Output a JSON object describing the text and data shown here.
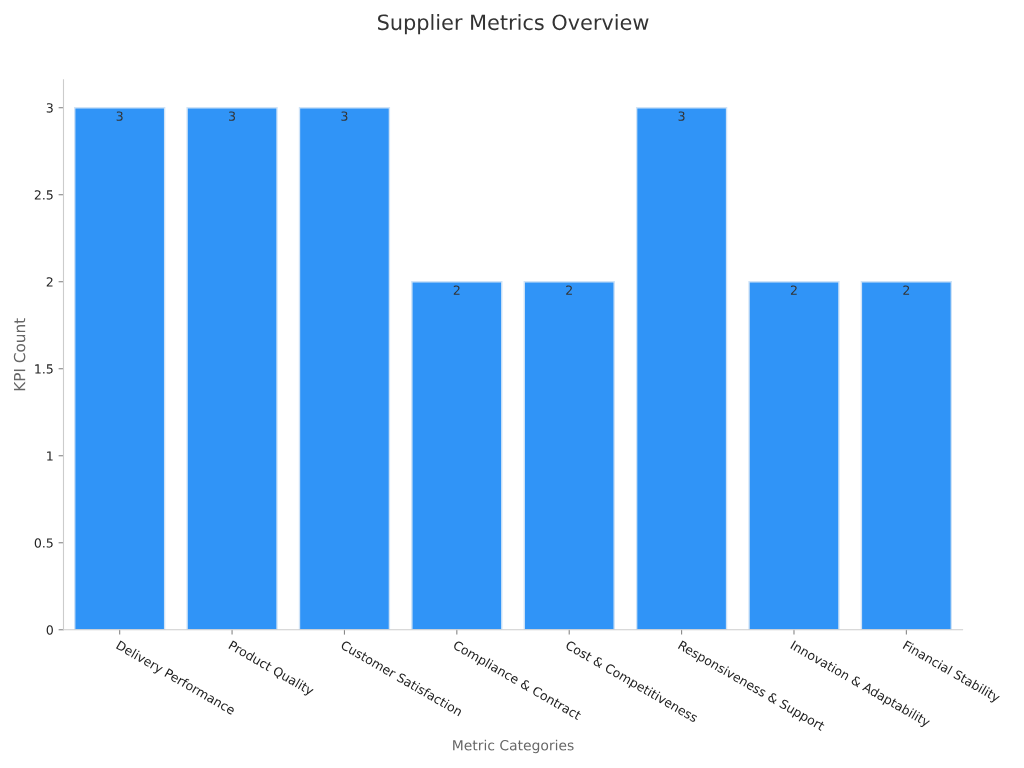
{
  "chart_data": {
    "type": "bar",
    "title": "Supplier Metrics Overview",
    "xlabel": "Metric Categories",
    "ylabel": "KPI Count",
    "categories": [
      "Delivery Performance",
      "Product Quality",
      "Customer Satisfaction",
      "Compliance & Contract",
      "Cost & Competitiveness",
      "Responsiveness & Support",
      "Innovation & Adaptability",
      "Financial Stability"
    ],
    "values": [
      3,
      3,
      3,
      2,
      2,
      3,
      2,
      2
    ],
    "color": "#3094f7",
    "ylim": [
      0,
      3.16
    ],
    "yticks": [
      0,
      0.5,
      1,
      1.5,
      2,
      2.5,
      3
    ],
    "grid": false,
    "data_labels": true
  }
}
